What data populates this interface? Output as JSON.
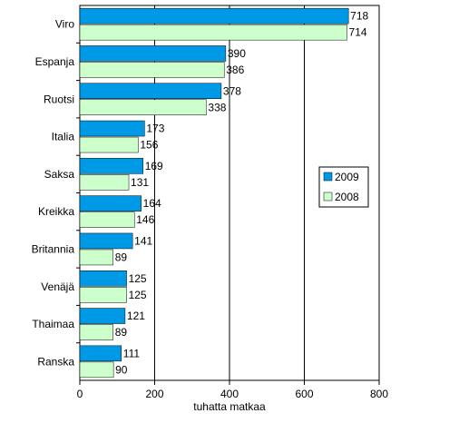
{
  "chart_data": {
    "type": "bar",
    "orientation": "horizontal",
    "categories": [
      "Viro",
      "Espanja",
      "Ruotsi",
      "Italia",
      "Saksa",
      "Kreikka",
      "Britannia",
      "Venäjä",
      "Thaimaa",
      "Ranska"
    ],
    "series": [
      {
        "name": "2009",
        "color": "#0099e6",
        "values": [
          718,
          390,
          378,
          173,
          169,
          164,
          141,
          125,
          121,
          111
        ]
      },
      {
        "name": "2008",
        "color": "#ccffcc",
        "values": [
          714,
          386,
          338,
          156,
          131,
          146,
          89,
          125,
          89,
          90
        ]
      }
    ],
    "xlabel": "tuhatta matkaa",
    "xlim": [
      0,
      800
    ],
    "xticks": [
      "0",
      "200",
      "400",
      "600",
      "800"
    ],
    "grid": "vertical",
    "legend_position": "right"
  }
}
